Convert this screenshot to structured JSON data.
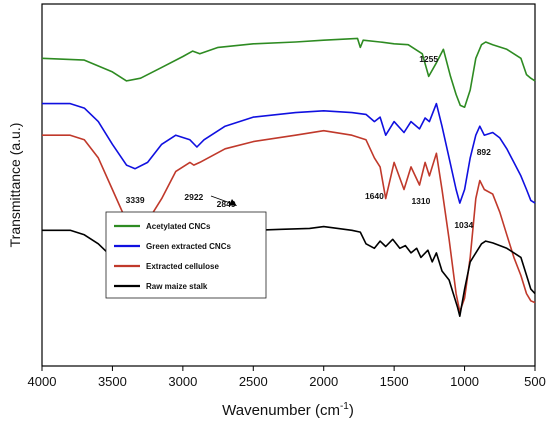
{
  "chart_data": {
    "type": "line",
    "xlabel": "Wavenumber (cm",
    "xlabel_sup": "-1",
    "xlabel_end": ")",
    "ylabel": "Transmittance (a.u.)",
    "xlim": [
      4000,
      500
    ],
    "x_ticks": [
      "4000",
      "3500",
      "3000",
      "2500",
      "2000",
      "1500",
      "1000",
      "500"
    ],
    "y_ticks_labeled": false,
    "grid": false,
    "legend_position": "lower-left",
    "legend": [
      {
        "label": "Acetylated CNCs",
        "color": "#2e8b22"
      },
      {
        "label": "Green extracted CNCs",
        "color": "#1010e0"
      },
      {
        "label": "Extracted cellulose",
        "color": "#c0392b"
      },
      {
        "label": "Raw maize stalk",
        "color": "#000000"
      }
    ],
    "annotations": [
      {
        "text": "1255",
        "x": 1255
      },
      {
        "text": "892",
        "x": 892
      },
      {
        "text": "3339",
        "x": 3339
      },
      {
        "text": "2922",
        "x": 2922
      },
      {
        "text": "2849",
        "x": 2849
      },
      {
        "text": "1640",
        "x": 1640
      },
      {
        "text": "1310",
        "x": 1310
      },
      {
        "text": "1034",
        "x": 1034
      }
    ],
    "series": [
      {
        "name": "Acetylated CNCs",
        "color": "#2e8b22",
        "x": [
          4000,
          3700,
          3500,
          3400,
          3300,
          3150,
          3000,
          2930,
          2880,
          2750,
          2500,
          2200,
          2000,
          1760,
          1740,
          1720,
          1600,
          1500,
          1400,
          1300,
          1255,
          1200,
          1150,
          1100,
          1060,
          1030,
          1000,
          960,
          920,
          880,
          850,
          800,
          700,
          600,
          560,
          530,
          500
        ],
        "y": [
          3.4,
          3.38,
          3.25,
          3.15,
          3.18,
          3.3,
          3.42,
          3.48,
          3.45,
          3.52,
          3.56,
          3.58,
          3.6,
          3.62,
          3.52,
          3.6,
          3.58,
          3.56,
          3.55,
          3.45,
          3.2,
          3.35,
          3.5,
          3.2,
          3.0,
          2.88,
          2.86,
          3.05,
          3.4,
          3.55,
          3.58,
          3.55,
          3.5,
          3.4,
          3.22,
          3.18,
          3.15
        ]
      },
      {
        "name": "Green extracted CNCs",
        "color": "#1010e0",
        "x": [
          4000,
          3800,
          3700,
          3600,
          3500,
          3400,
          3339,
          3250,
          3150,
          3050,
          2950,
          2900,
          2850,
          2700,
          2500,
          2200,
          2000,
          1800,
          1700,
          1640,
          1600,
          1560,
          1500,
          1430,
          1380,
          1320,
          1280,
          1250,
          1200,
          1160,
          1110,
          1060,
          1034,
          1000,
          960,
          920,
          892,
          860,
          800,
          750,
          700,
          650,
          600,
          560,
          530,
          500
        ],
        "y": [
          2.9,
          2.9,
          2.85,
          2.7,
          2.45,
          2.22,
          2.18,
          2.25,
          2.45,
          2.55,
          2.5,
          2.42,
          2.5,
          2.65,
          2.75,
          2.8,
          2.82,
          2.8,
          2.78,
          2.7,
          2.75,
          2.55,
          2.7,
          2.58,
          2.7,
          2.62,
          2.74,
          2.7,
          2.9,
          2.65,
          2.3,
          1.95,
          1.8,
          1.95,
          2.3,
          2.55,
          2.65,
          2.55,
          2.58,
          2.52,
          2.4,
          2.25,
          2.1,
          1.95,
          1.83,
          1.8
        ]
      },
      {
        "name": "Extracted cellulose",
        "color": "#c0392b",
        "x": [
          4000,
          3800,
          3700,
          3600,
          3500,
          3400,
          3339,
          3250,
          3150,
          3050,
          2950,
          2922,
          2880,
          2700,
          2500,
          2200,
          2000,
          1800,
          1700,
          1640,
          1600,
          1560,
          1500,
          1430,
          1380,
          1320,
          1280,
          1250,
          1200,
          1160,
          1110,
          1060,
          1034,
          1000,
          960,
          920,
          892,
          860,
          800,
          750,
          700,
          650,
          600,
          560,
          530,
          500
        ],
        "y": [
          2.55,
          2.55,
          2.5,
          2.3,
          1.95,
          1.6,
          1.5,
          1.6,
          1.85,
          2.15,
          2.25,
          2.22,
          2.25,
          2.4,
          2.48,
          2.55,
          2.6,
          2.55,
          2.5,
          2.3,
          2.2,
          1.85,
          2.25,
          1.95,
          2.2,
          2.0,
          2.25,
          2.1,
          2.35,
          1.95,
          1.4,
          0.8,
          0.6,
          0.75,
          1.2,
          1.85,
          2.05,
          1.95,
          1.9,
          1.7,
          1.45,
          1.2,
          1.0,
          0.8,
          0.72,
          0.7
        ]
      },
      {
        "name": "Raw maize stalk",
        "color": "#000000",
        "x": [
          4000,
          3800,
          3700,
          3600,
          3500,
          3400,
          3339,
          3200,
          3050,
          2950,
          2922,
          2890,
          2870,
          2849,
          2820,
          2700,
          2500,
          2300,
          2100,
          2000,
          1900,
          1800,
          1740,
          1700,
          1640,
          1600,
          1560,
          1510,
          1460,
          1420,
          1380,
          1340,
          1310,
          1260,
          1230,
          1200,
          1160,
          1110,
          1080,
          1050,
          1034,
          1000,
          960,
          920,
          880,
          850,
          800,
          700,
          600,
          550,
          530,
          500
        ],
        "y": [
          1.5,
          1.5,
          1.45,
          1.35,
          1.2,
          1.12,
          1.1,
          1.15,
          1.32,
          1.42,
          1.3,
          1.42,
          1.28,
          1.4,
          1.45,
          1.48,
          1.5,
          1.51,
          1.52,
          1.54,
          1.52,
          1.5,
          1.48,
          1.35,
          1.3,
          1.38,
          1.32,
          1.4,
          1.3,
          1.33,
          1.25,
          1.3,
          1.2,
          1.28,
          1.15,
          1.25,
          1.05,
          0.95,
          0.8,
          0.65,
          0.55,
          0.85,
          1.15,
          1.25,
          1.35,
          1.38,
          1.36,
          1.3,
          1.2,
          0.95,
          0.85,
          0.8
        ]
      }
    ]
  }
}
